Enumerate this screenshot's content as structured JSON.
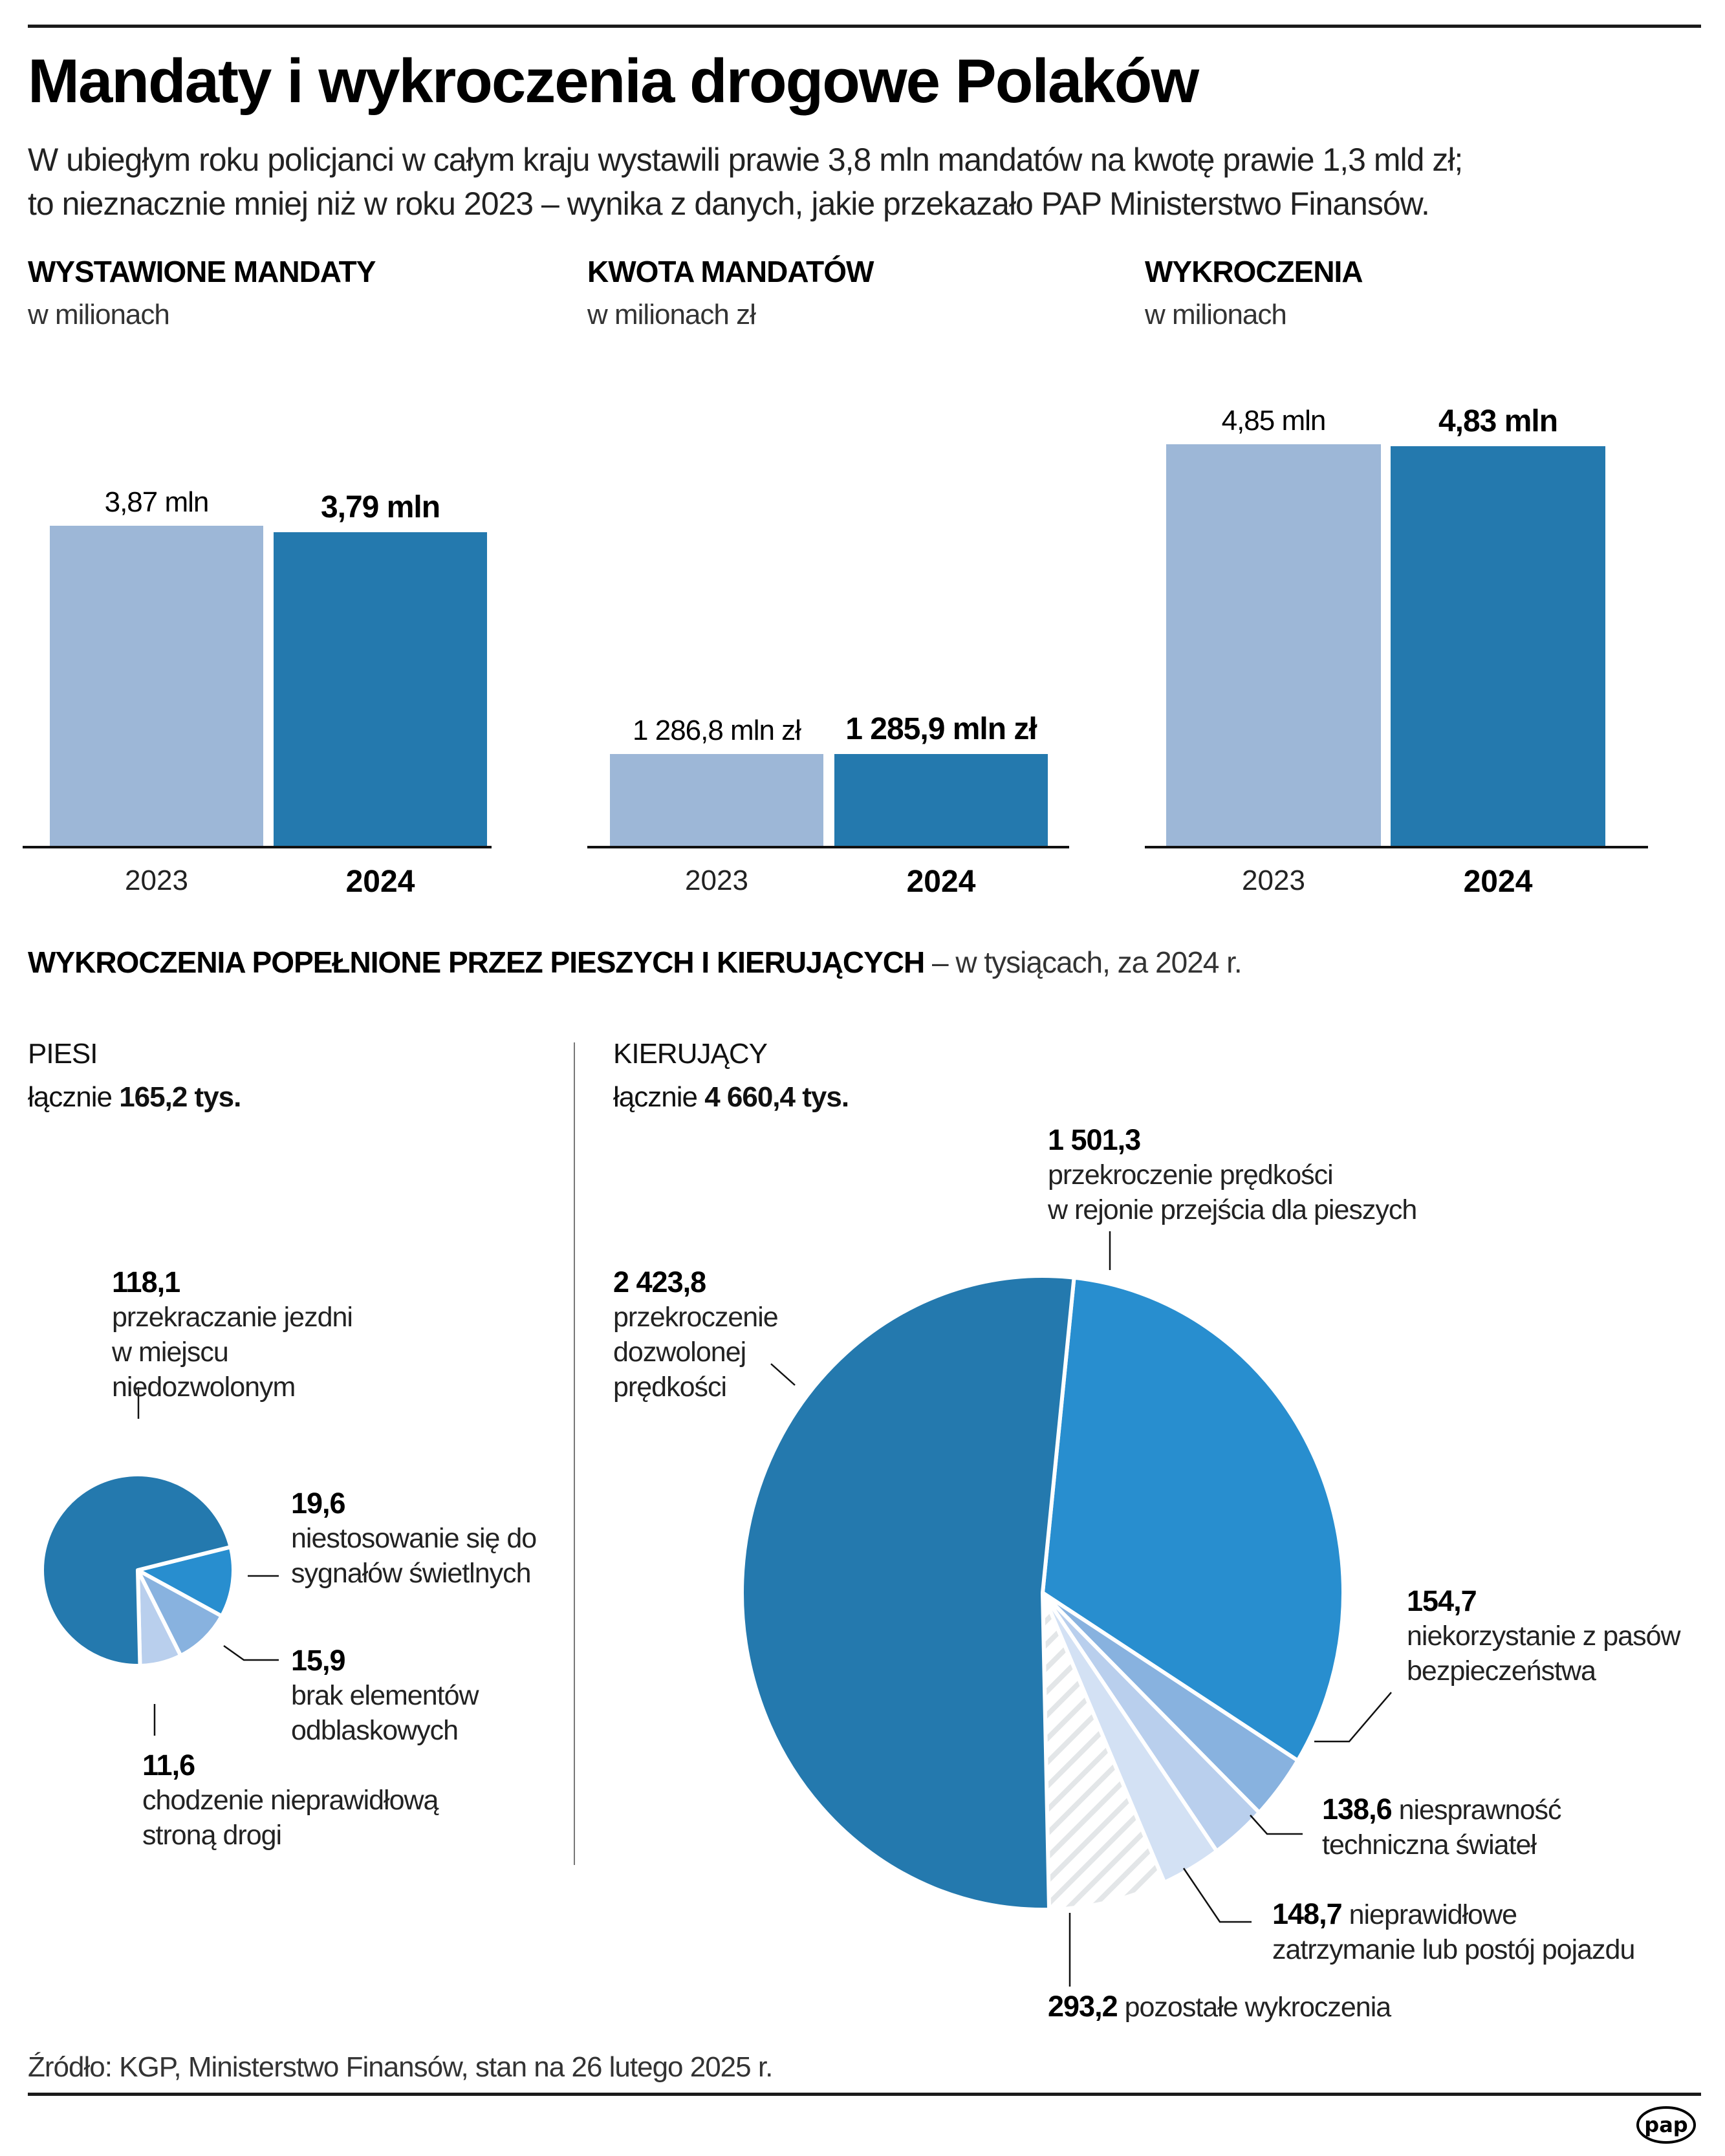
{
  "header": {
    "title": "Mandaty i wykroczenia drogowe Polaków",
    "subtitle_lines": [
      "W ubiegłym roku policjanci w całym kraju wystawili prawie 3,8 mln mandatów na kwotę prawie 1,3 mld zł;",
      "to nieznacznie mniej niż w roku 2023 – wynika z danych, jakie przekazało PAP Ministerstwo Finansów."
    ]
  },
  "colors": {
    "bar_2023": "#9db7d7",
    "bar_2024": "#2479ae",
    "pie_dark": "#2479ae",
    "pie_mid": "#288ecf",
    "pie_light1": "#88b2df",
    "pie_light2": "#b9cfed",
    "pie_light3": "#d3e1f4",
    "hatch": "#e3e6e8"
  },
  "chart_data": [
    {
      "type": "bar",
      "title": "WYSTAWIONE MANDATY",
      "subtitle": "w milionach",
      "categories": [
        "2023",
        "2024"
      ],
      "values": [
        3.87,
        3.79
      ],
      "value_labels": [
        "3,87 mln",
        "3,79 mln"
      ],
      "ylim": [
        0,
        5.0
      ]
    },
    {
      "type": "bar",
      "title": "KWOTA MANDATÓW",
      "subtitle": "w milionach zł",
      "categories": [
        "2023",
        "2024"
      ],
      "values": [
        1286.8,
        1285.9
      ],
      "value_labels": [
        "1 286,8 mln zł",
        "1 285,9 mln zł"
      ],
      "ylim": [
        0,
        5800
      ]
    },
    {
      "type": "bar",
      "title": "WYKROCZENIA",
      "subtitle": "w milionach",
      "categories": [
        "2023",
        "2024"
      ],
      "values": [
        4.85,
        4.83
      ],
      "value_labels": [
        "4,85 mln",
        "4,83 mln"
      ],
      "ylim": [
        0,
        5.0
      ]
    },
    {
      "type": "pie",
      "title": "PIESI",
      "total_prefix": "łącznie",
      "total_label": "165,2 tys.",
      "unit": "tys.",
      "slices": [
        {
          "label": "przekraczanie jezdni w miejscu niedozwolonym",
          "value": 118.1,
          "value_label": "118,1",
          "color_key": "pie_dark"
        },
        {
          "label": "niestosowanie się do sygnałów świetlnych",
          "value": 19.6,
          "value_label": "19,6",
          "color_key": "pie_mid"
        },
        {
          "label": "brak elementów odblaskowych",
          "value": 15.9,
          "value_label": "15,9",
          "color_key": "pie_light1"
        },
        {
          "label": "chodzenie nieprawidłową stroną drogi",
          "value": 11.6,
          "value_label": "11,6",
          "color_key": "pie_light2"
        }
      ]
    },
    {
      "type": "pie",
      "title": "KIERUJĄCY",
      "total_prefix": "łącznie",
      "total_label": "4 660,4 tys.",
      "unit": "tys.",
      "slices": [
        {
          "label": "przekroczenie prędkości w rejonie przejścia dla pieszych",
          "value": 1501.3,
          "value_label": "1 501,3",
          "color_key": "pie_mid"
        },
        {
          "label": "niekorzystanie z pasów bezpieczeństwa",
          "value": 154.7,
          "value_label": "154,7",
          "color_key": "pie_light1"
        },
        {
          "label": "niesprawność techniczna świateł",
          "value": 138.6,
          "value_label": "138,6",
          "color_key": "pie_light2"
        },
        {
          "label": "nieprawidłowe zatrzymanie lub postój pojazdu",
          "value": 148.7,
          "value_label": "148,7",
          "color_key": "pie_light3"
        },
        {
          "label": "pozostałe wykroczenia",
          "value": 293.2,
          "value_label": "293,2",
          "color_key": "hatch"
        },
        {
          "label": "przekroczenie dozwolonej prędkości",
          "value": 2423.8,
          "value_label": "2 423,8",
          "color_key": "pie_dark"
        }
      ]
    }
  ],
  "section2": {
    "heading_bold": "WYKROCZENIA POPEŁNIONE PRZEZ PIESZYCH I KIERUJĄCYCH",
    "heading_light": " – w tysiącach, za 2024 r."
  },
  "labels": {
    "piesi": [
      {
        "num": "118,1",
        "lines": [
          "przekraczanie jezdni",
          "w miejscu",
          "niedozwolonym"
        ]
      },
      {
        "num": "19,6",
        "lines": [
          "niestosowanie się do",
          "sygnałów świetlnych"
        ]
      },
      {
        "num": "15,9",
        "lines": [
          "brak elementów",
          "odblaskowych"
        ]
      },
      {
        "num": "11,6",
        "lines": [
          "chodzenie nieprawidłową",
          "stroną drogi"
        ]
      }
    ],
    "kierujacy": [
      {
        "num": "1 501,3",
        "lines": [
          "przekroczenie prędkości",
          "w rejonie przejścia dla pieszych"
        ]
      },
      {
        "num": "2 423,8",
        "lines": [
          "przekroczenie",
          "dozwolonej",
          "prędkości"
        ]
      },
      {
        "num": "154,7",
        "lines": [
          "niekorzystanie z pasów",
          "bezpieczeństwa"
        ]
      },
      {
        "num": "138,6",
        "inline": " niesprawność",
        "lines": [
          "techniczna świateł"
        ]
      },
      {
        "num": "148,7",
        "inline": " nieprawidłowe",
        "lines": [
          "zatrzymanie lub postój pojazdu"
        ]
      },
      {
        "num": "293,2",
        "inline": " pozostałe wykroczenia",
        "lines": []
      }
    ]
  },
  "footer": {
    "source": "Źródło: KGP, Ministerstwo Finansów, stan na 26 lutego 2025 r.",
    "logo_text": "pap"
  }
}
